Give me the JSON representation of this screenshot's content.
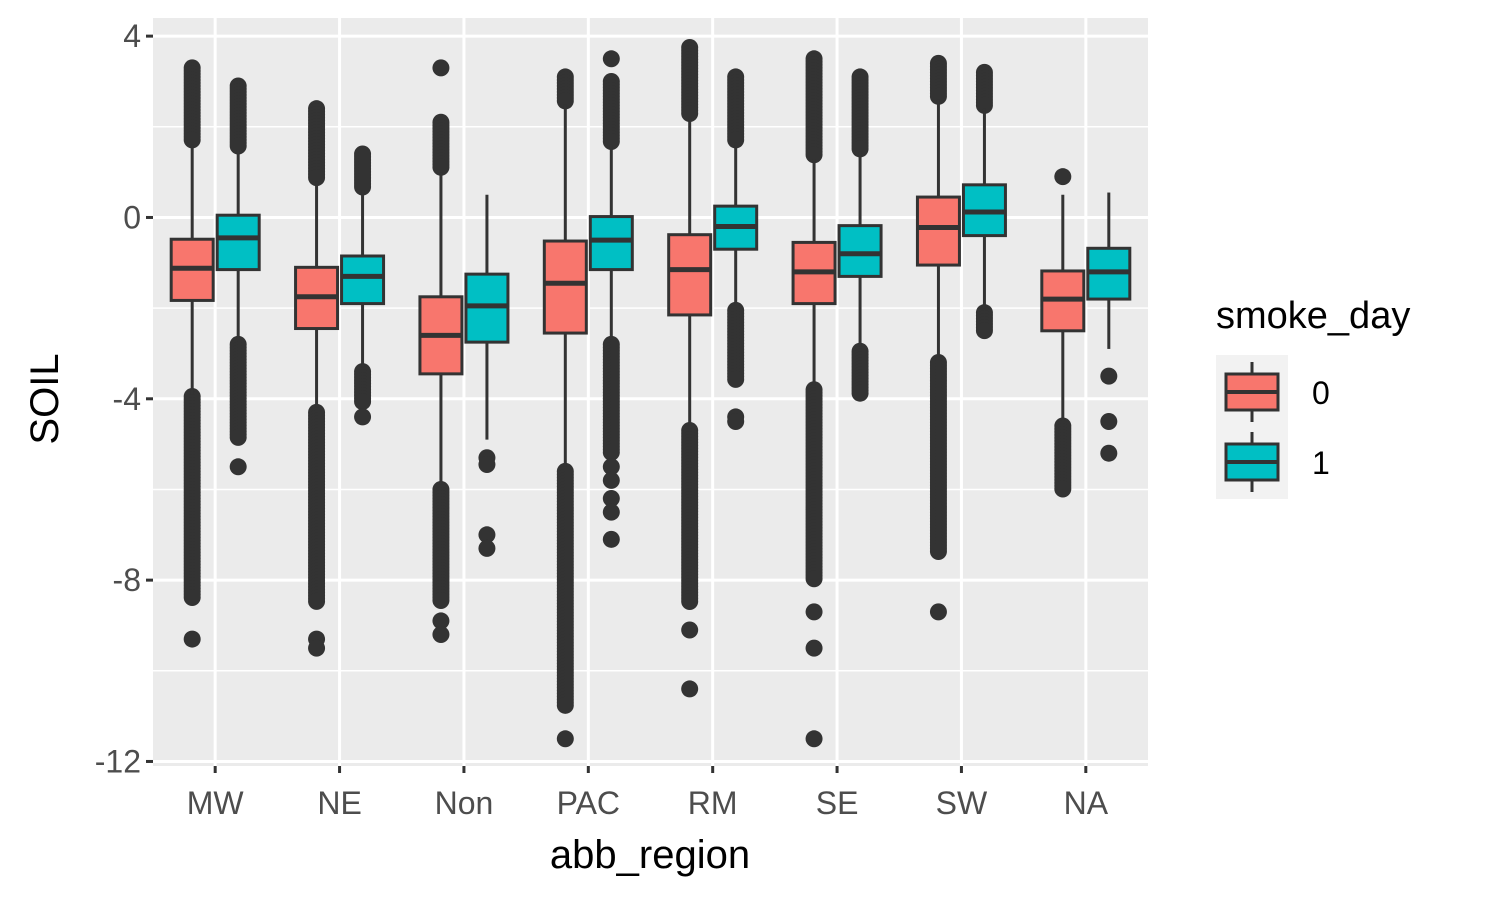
{
  "chart_data": {
    "type": "boxplot",
    "xlabel": "abb_region",
    "ylabel": "SOIL",
    "ylim": [
      -12.1,
      4.4
    ],
    "yticks": [
      4,
      0,
      -4,
      -8,
      -12
    ],
    "categories": [
      "MW",
      "NE",
      "Non",
      "PAC",
      "RM",
      "SE",
      "SW",
      "NA"
    ],
    "legend": {
      "title": "smoke_day",
      "position": "right",
      "entries": [
        {
          "label": "0",
          "color": "#F8766D"
        },
        {
          "label": "1",
          "color": "#00BFC4"
        }
      ]
    },
    "grid": true,
    "series": [
      {
        "name": "0",
        "color": "#F8766D",
        "boxes": [
          {
            "category": "MW",
            "q1": -1.83,
            "median": -1.12,
            "q3": -0.48,
            "whisker_low": -3.9,
            "whisker_high": 1.6,
            "outliers_low_range": [
              -3.95,
              -8.4
            ],
            "outliers_high_range": [
              1.65,
              3.3
            ],
            "extreme_outliers": [
              -9.3
            ]
          },
          {
            "category": "NE",
            "q1": -2.45,
            "median": -1.75,
            "q3": -1.1,
            "whisker_low": -4.2,
            "whisker_high": 0.8,
            "outliers_low_range": [
              -4.3,
              -8.5
            ],
            "outliers_high_range": [
              0.85,
              2.4
            ],
            "extreme_outliers": [
              -9.3,
              -9.5
            ]
          },
          {
            "category": "Non",
            "q1": -3.45,
            "median": -2.6,
            "q3": -1.75,
            "whisker_low": -5.9,
            "whisker_high": 1.0,
            "outliers_low_range": [
              -6.0,
              -8.5
            ],
            "outliers_high_range": [
              1.05,
              2.1
            ],
            "extreme_outliers": [
              -8.9,
              -9.2,
              3.3
            ]
          },
          {
            "category": "PAC",
            "q1": -2.55,
            "median": -1.45,
            "q3": -0.52,
            "whisker_low": -5.5,
            "whisker_high": 2.5,
            "outliers_low_range": [
              -5.6,
              -10.8
            ],
            "outliers_high_range": [
              2.55,
              3.1
            ],
            "extreme_outliers": [
              -11.5
            ]
          },
          {
            "category": "RM",
            "q1": -2.15,
            "median": -1.15,
            "q3": -0.38,
            "whisker_low": -4.6,
            "whisker_high": 2.2,
            "outliers_low_range": [
              -4.7,
              -8.5
            ],
            "outliers_high_range": [
              2.25,
              3.75
            ],
            "extreme_outliers": [
              -9.1,
              -10.4
            ]
          },
          {
            "category": "SE",
            "q1": -1.9,
            "median": -1.2,
            "q3": -0.55,
            "whisker_low": -3.7,
            "whisker_high": 1.3,
            "outliers_low_range": [
              -3.8,
              -8.0
            ],
            "outliers_high_range": [
              1.35,
              3.5
            ],
            "extreme_outliers": [
              -8.7,
              -9.5,
              -11.5
            ]
          },
          {
            "category": "SW",
            "q1": -1.05,
            "median": -0.22,
            "q3": 0.45,
            "whisker_low": -3.1,
            "whisker_high": 2.6,
            "outliers_low_range": [
              -3.2,
              -7.4
            ],
            "outliers_high_range": [
              2.65,
              3.4
            ],
            "extreme_outliers": [
              -8.7
            ]
          },
          {
            "category": "NA",
            "q1": -2.5,
            "median": -1.8,
            "q3": -1.18,
            "whisker_low": -4.5,
            "whisker_high": 0.5,
            "outliers_low_range": [
              -4.6,
              -6.0
            ],
            "outliers_high_range": [],
            "extreme_outliers": [
              0.9
            ]
          }
        ]
      },
      {
        "name": "1",
        "color": "#00BFC4",
        "boxes": [
          {
            "category": "MW",
            "q1": -1.15,
            "median": -0.45,
            "q3": 0.05,
            "whisker_low": -2.7,
            "whisker_high": 1.5,
            "outliers_low_range": [
              -2.8,
              -4.9
            ],
            "outliers_high_range": [
              1.55,
              2.9
            ],
            "extreme_outliers": [
              -5.5
            ]
          },
          {
            "category": "NE",
            "q1": -1.9,
            "median": -1.3,
            "q3": -0.85,
            "whisker_low": -3.3,
            "whisker_high": 0.6,
            "outliers_low_range": [
              -3.4,
              -4.1
            ],
            "outliers_high_range": [
              0.65,
              1.4
            ],
            "extreme_outliers": [
              -4.4
            ]
          },
          {
            "category": "Non",
            "q1": -2.75,
            "median": -1.95,
            "q3": -1.25,
            "whisker_low": -4.9,
            "whisker_high": 0.5,
            "outliers_low_range": [],
            "outliers_high_range": [],
            "extreme_outliers": [
              -5.3,
              -5.45,
              -7.0,
              -7.3
            ]
          },
          {
            "category": "PAC",
            "q1": -1.15,
            "median": -0.5,
            "q3": 0.02,
            "whisker_low": -2.7,
            "whisker_high": 1.6,
            "outliers_low_range": [
              -2.8,
              -5.2
            ],
            "outliers_high_range": [
              1.65,
              3.0
            ],
            "extreme_outliers": [
              -5.5,
              -5.8,
              -6.2,
              -6.5,
              -7.1,
              3.5
            ]
          },
          {
            "category": "RM",
            "q1": -0.7,
            "median": -0.2,
            "q3": 0.25,
            "whisker_low": -1.95,
            "whisker_high": 1.65,
            "outliers_low_range": [
              -2.05,
              -3.6
            ],
            "outliers_high_range": [
              1.7,
              3.1
            ],
            "extreme_outliers": [
              -4.4,
              -4.5
            ]
          },
          {
            "category": "SE",
            "q1": -1.3,
            "median": -0.8,
            "q3": -0.18,
            "whisker_low": -2.85,
            "whisker_high": 1.45,
            "outliers_low_range": [
              -2.95,
              -3.9
            ],
            "outliers_high_range": [
              1.5,
              3.1
            ],
            "extreme_outliers": []
          },
          {
            "category": "SW",
            "q1": -0.4,
            "median": 0.12,
            "q3": 0.72,
            "whisker_low": -2.0,
            "whisker_high": 2.4,
            "outliers_low_range": [
              -2.1,
              -2.5
            ],
            "outliers_high_range": [
              2.45,
              3.2
            ],
            "extreme_outliers": []
          },
          {
            "category": "NA",
            "q1": -1.8,
            "median": -1.2,
            "q3": -0.68,
            "whisker_low": -2.9,
            "whisker_high": 0.55,
            "outliers_low_range": [],
            "outliers_high_range": [],
            "extreme_outliers": [
              -3.5,
              -4.5,
              -5.2
            ]
          }
        ]
      }
    ]
  }
}
